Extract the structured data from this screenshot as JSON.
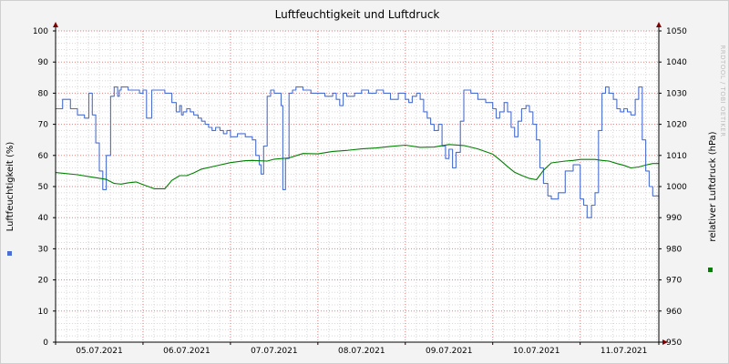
{
  "chart_data": {
    "type": "line",
    "title": "Luftfeuchtigkeit und Luftdruck",
    "watermark": "RRDTOOL / TOBI OETIKER",
    "x_tick_labels": [
      "05.07.2021",
      "06.07.2021",
      "07.07.2021",
      "08.07.2021",
      "09.07.2021",
      "10.07.2021",
      "11.07.2021"
    ],
    "x_range_days": [
      0,
      6.9
    ],
    "y_left": {
      "label": "Luftfeuchtigkeit (%)",
      "range": [
        0,
        100
      ],
      "ticks": [
        0,
        10,
        20,
        30,
        40,
        50,
        60,
        70,
        80,
        90,
        100
      ]
    },
    "y_right": {
      "label": "relativer Luftdruck (hPa)",
      "range": [
        950,
        1050
      ],
      "ticks": [
        950,
        960,
        970,
        980,
        990,
        1000,
        1010,
        1020,
        1030,
        1040,
        1050
      ]
    },
    "grid": true,
    "colors": {
      "humidity": "#4a6fd0",
      "pressure": "#008000",
      "grid_minor": "#d8d8d8",
      "grid_major": "#e08080",
      "axis": "#000000",
      "arrow": "#800000"
    },
    "series": [
      {
        "axis": "left",
        "color": "#4a6fd0",
        "x": [
          0.0,
          0.08,
          0.17,
          0.25,
          0.33,
          0.38,
          0.42,
          0.46,
          0.5,
          0.54,
          0.58,
          0.63,
          0.67,
          0.71,
          0.73,
          0.75,
          0.79,
          0.83,
          0.88,
          0.92,
          0.96,
          1.0,
          1.04,
          1.1,
          1.17,
          1.25,
          1.33,
          1.38,
          1.42,
          1.44,
          1.46,
          1.5,
          1.54,
          1.58,
          1.63,
          1.67,
          1.71,
          1.75,
          1.79,
          1.83,
          1.88,
          1.92,
          1.96,
          2.0,
          2.08,
          2.17,
          2.25,
          2.29,
          2.33,
          2.35,
          2.38,
          2.42,
          2.46,
          2.5,
          2.54,
          2.58,
          2.6,
          2.63,
          2.67,
          2.71,
          2.75,
          2.83,
          2.92,
          3.0,
          3.08,
          3.17,
          3.21,
          3.25,
          3.29,
          3.33,
          3.42,
          3.5,
          3.58,
          3.67,
          3.75,
          3.83,
          3.92,
          4.0,
          4.04,
          4.08,
          4.13,
          4.17,
          4.21,
          4.25,
          4.29,
          4.33,
          4.38,
          4.42,
          4.46,
          4.5,
          4.54,
          4.58,
          4.63,
          4.67,
          4.75,
          4.83,
          4.92,
          5.0,
          5.04,
          5.08,
          5.13,
          5.17,
          5.21,
          5.25,
          5.29,
          5.33,
          5.38,
          5.42,
          5.46,
          5.5,
          5.54,
          5.58,
          5.63,
          5.67,
          5.75,
          5.83,
          5.92,
          6.0,
          6.04,
          6.08,
          6.13,
          6.17,
          6.21,
          6.25,
          6.29,
          6.33,
          6.38,
          6.42,
          6.46,
          6.5,
          6.54,
          6.58,
          6.63,
          6.67,
          6.71,
          6.75,
          6.79,
          6.83,
          6.9
        ],
        "values": [
          75,
          78,
          75,
          73,
          72,
          80,
          73,
          64,
          55,
          49,
          60,
          79,
          82,
          79,
          81,
          82,
          82,
          81,
          81,
          81,
          80,
          81,
          72,
          81,
          81,
          80,
          77,
          74,
          76,
          73,
          74,
          75,
          74,
          73,
          72,
          71,
          70,
          69,
          68,
          69,
          68,
          67,
          68,
          66,
          67,
          66,
          65,
          60,
          57,
          54,
          63,
          79,
          81,
          80,
          80,
          76,
          49,
          59,
          80,
          81,
          82,
          81,
          80,
          80,
          79,
          80,
          78,
          76,
          80,
          79,
          80,
          81,
          80,
          81,
          80,
          78,
          80,
          78,
          77,
          79,
          80,
          78,
          74,
          72,
          70,
          68,
          70,
          63,
          59,
          62,
          56,
          61,
          71,
          81,
          80,
          78,
          77,
          75,
          72,
          74,
          77,
          74,
          69,
          66,
          71,
          75,
          76,
          74,
          70,
          65,
          56,
          51,
          47,
          46,
          48,
          55,
          57,
          46,
          44,
          40,
          44,
          48,
          68,
          80,
          82,
          80,
          78,
          75,
          74,
          75,
          74,
          73,
          78,
          82,
          65,
          55,
          50,
          47,
          46
        ],
        "steps": true
      },
      {
        "axis": "right",
        "color": "#008000",
        "x": [
          0.0,
          0.25,
          0.42,
          0.58,
          0.67,
          0.75,
          0.83,
          0.92,
          1.0,
          1.13,
          1.25,
          1.33,
          1.42,
          1.5,
          1.58,
          1.67,
          1.83,
          2.0,
          2.17,
          2.25,
          2.42,
          2.5,
          2.67,
          2.83,
          3.0,
          3.17,
          3.33,
          3.5,
          3.67,
          3.83,
          4.0,
          4.17,
          4.33,
          4.5,
          4.67,
          4.83,
          5.0,
          5.08,
          5.17,
          5.25,
          5.33,
          5.42,
          5.5,
          5.58,
          5.67,
          5.75,
          5.83,
          5.92,
          6.0,
          6.17,
          6.25,
          6.33,
          6.42,
          6.5,
          6.58,
          6.67,
          6.75,
          6.83,
          6.9
        ],
        "values": [
          1004.5,
          1003.8,
          1003.0,
          1002.3,
          1001.0,
          1000.8,
          1001.2,
          1001.5,
          1000.6,
          999.3,
          999.3,
          1002.0,
          1003.5,
          1003.5,
          1004.4,
          1005.6,
          1006.6,
          1007.7,
          1008.3,
          1008.4,
          1008.2,
          1008.8,
          1009.2,
          1010.6,
          1010.5,
          1011.3,
          1011.6,
          1012.1,
          1012.4,
          1012.9,
          1013.3,
          1012.6,
          1012.7,
          1013.5,
          1013.2,
          1012.1,
          1010.4,
          1008.6,
          1006.4,
          1004.6,
          1003.6,
          1002.6,
          1002.2,
          1005.2,
          1007.6,
          1007.9,
          1008.2,
          1008.4,
          1008.7,
          1008.7,
          1008.4,
          1008.2,
          1007.4,
          1006.8,
          1006.0,
          1006.3,
          1006.9,
          1007.4,
          1007.4
        ],
        "steps": false
      }
    ]
  }
}
